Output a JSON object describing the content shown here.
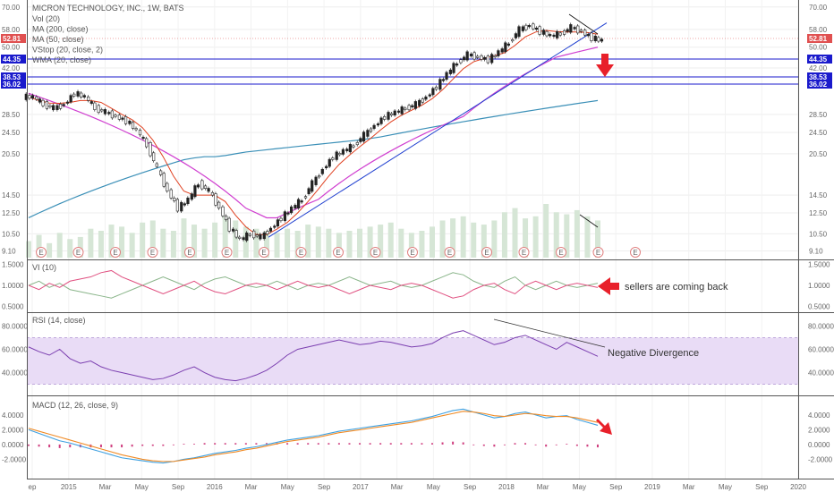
{
  "chart_data": {
    "type": "line",
    "title": "MICRON TECHNOLOGY, INC., 1W, BATS",
    "legend": [
      "Vol (20)",
      "MA (200, close)",
      "MA (50, close)",
      "VStop (20, close, 2)",
      "WMA (20, close)"
    ],
    "x_labels": [
      "ep",
      "2015",
      "Mar",
      "May",
      "Sep",
      "2016",
      "Mar",
      "May",
      "Sep",
      "2017",
      "Mar",
      "May",
      "Sep",
      "2018",
      "Mar",
      "May",
      "Sep",
      "2019",
      "Mar",
      "May",
      "Sep",
      "2020"
    ],
    "price_axis": {
      "ticks": [
        "70.00",
        "58.00",
        "50.00",
        "42.00",
        "28.50",
        "24.50",
        "20.50",
        "14.50",
        "12.50",
        "10.50",
        "9.10"
      ],
      "last_close": "52.81",
      "levels": [
        "44.35",
        "38.53",
        "36.02"
      ]
    },
    "price_series": {
      "close": [
        33,
        31,
        30,
        31,
        34,
        33,
        30,
        29,
        28,
        27,
        25,
        22,
        18,
        15,
        13,
        14,
        16,
        15,
        13,
        11,
        10,
        10.5,
        10.2,
        11,
        12,
        13,
        14,
        16,
        18,
        20,
        21,
        22,
        24,
        26,
        28,
        29,
        30,
        31,
        33,
        36,
        40,
        44,
        47,
        46,
        45,
        48,
        52,
        58,
        60,
        57,
        55,
        56,
        59,
        57,
        54,
        52.81
      ],
      "ma50": [
        34,
        33,
        32,
        31,
        30,
        29,
        28,
        27,
        26,
        25,
        24,
        23,
        22,
        21,
        20,
        19,
        18,
        17,
        16,
        15,
        14,
        13,
        12.5,
        12,
        12,
        12.5,
        13,
        13.5,
        14,
        15,
        16,
        17,
        18,
        19,
        20,
        21,
        22,
        23,
        24,
        25,
        26,
        27,
        28,
        30,
        32,
        34,
        36,
        38,
        40,
        42,
        44,
        46,
        47,
        48,
        49,
        50
      ],
      "ma200": [
        12,
        12.5,
        13,
        13.5,
        14,
        14.5,
        15,
        15.5,
        16,
        16.5,
        17,
        17.5,
        18,
        18.5,
        19,
        19.5,
        19.8,
        20,
        20,
        20.2,
        20.5,
        20.8,
        21,
        21.2,
        21.4,
        21.6,
        21.8,
        22,
        22.2,
        22.4,
        22.6,
        22.8,
        23,
        23.3,
        23.6,
        24,
        24.4,
        24.8,
        25.2,
        25.6,
        26,
        26.4,
        26.8,
        27.2,
        27.6,
        28,
        28.4,
        28.8,
        29.2,
        29.6,
        30,
        30.4,
        30.8,
        31.2,
        31.6,
        32
      ]
    },
    "volume": [
      40,
      55,
      35,
      60,
      45,
      50,
      70,
      65,
      80,
      75,
      60,
      85,
      90,
      70,
      65,
      95,
      80,
      70,
      85,
      100,
      90,
      75,
      70,
      65,
      60,
      70,
      65,
      80,
      75,
      70,
      60,
      65,
      70,
      75,
      80,
      85,
      70,
      60,
      65,
      75,
      90,
      95,
      100,
      85,
      80,
      90,
      110,
      120,
      95,
      100,
      130,
      110,
      105,
      115,
      100,
      90
    ],
    "earnings_markers": "E",
    "vi": {
      "label": "VI (10)",
      "ticks": [
        "1.5000",
        "1.0000",
        "0.5000"
      ],
      "vi_plus": [
        1.0,
        1.1,
        0.95,
        1.05,
        0.9,
        0.85,
        0.8,
        0.75,
        0.7,
        0.8,
        0.9,
        1.0,
        1.1,
        1.2,
        1.1,
        1.0,
        0.9,
        1.05,
        1.15,
        1.2,
        1.1,
        1.0,
        0.95,
        1.0,
        1.1,
        1.0,
        0.9,
        1.0,
        1.05,
        1.0,
        1.1,
        1.2,
        1.1,
        1.0,
        1.05,
        1.1,
        1.0,
        0.95,
        1.0,
        1.1,
        1.2,
        1.3,
        1.25,
        1.1,
        1.0,
        0.95,
        1.1,
        1.2,
        1.0,
        0.9,
        1.0,
        1.1,
        1.0,
        0.95,
        1.0,
        1.05
      ],
      "vi_minus": [
        1.0,
        0.9,
        1.05,
        0.95,
        1.1,
        1.15,
        1.2,
        1.3,
        1.35,
        1.2,
        1.1,
        1.0,
        0.9,
        0.8,
        0.9,
        1.0,
        1.1,
        0.95,
        0.85,
        0.8,
        0.9,
        1.0,
        1.05,
        1.0,
        0.9,
        1.0,
        1.1,
        1.0,
        0.95,
        1.0,
        0.9,
        0.8,
        0.9,
        1.0,
        0.95,
        0.9,
        1.0,
        1.05,
        1.0,
        0.9,
        0.8,
        0.7,
        0.75,
        0.9,
        1.0,
        1.05,
        0.9,
        0.8,
        1.0,
        1.1,
        1.0,
        0.9,
        1.0,
        1.05,
        1.0,
        0.95
      ],
      "annotation": "sellers are coming back"
    },
    "rsi": {
      "label": "RSI (14, close)",
      "ticks": [
        "80.0000",
        "60.0000",
        "40.0000"
      ],
      "values": [
        62,
        58,
        55,
        60,
        52,
        48,
        50,
        45,
        42,
        40,
        38,
        36,
        34,
        35,
        38,
        42,
        45,
        40,
        36,
        34,
        33,
        35,
        38,
        42,
        48,
        55,
        60,
        62,
        64,
        66,
        68,
        66,
        64,
        65,
        67,
        66,
        64,
        62,
        63,
        65,
        70,
        74,
        76,
        72,
        68,
        64,
        66,
        70,
        72,
        68,
        64,
        60,
        66,
        62,
        58,
        54
      ],
      "annotation": "Negative Divergence"
    },
    "macd": {
      "label": "MACD (12, 26, close, 9)",
      "ticks": [
        "4.0000",
        "2.0000",
        "0.0000",
        "-2.0000"
      ],
      "macd": [
        2.0,
        1.5,
        1.0,
        0.5,
        0.2,
        -0.2,
        -0.6,
        -1.0,
        -1.4,
        -1.8,
        -2.0,
        -2.2,
        -2.4,
        -2.5,
        -2.3,
        -2.0,
        -1.8,
        -1.5,
        -1.2,
        -1.0,
        -0.8,
        -0.5,
        -0.3,
        0.0,
        0.3,
        0.6,
        0.8,
        1.0,
        1.2,
        1.5,
        1.8,
        2.0,
        2.2,
        2.4,
        2.6,
        2.8,
        3.0,
        3.2,
        3.5,
        3.8,
        4.2,
        4.6,
        4.8,
        4.4,
        4.0,
        3.6,
        3.8,
        4.2,
        4.4,
        4.0,
        3.6,
        3.8,
        3.9,
        3.4,
        3.0,
        2.6
      ],
      "signal": [
        2.2,
        1.8,
        1.4,
        1.0,
        0.6,
        0.2,
        -0.2,
        -0.6,
        -1.0,
        -1.4,
        -1.7,
        -2.0,
        -2.2,
        -2.3,
        -2.3,
        -2.1,
        -1.9,
        -1.7,
        -1.4,
        -1.2,
        -1.0,
        -0.7,
        -0.5,
        -0.2,
        0.1,
        0.4,
        0.6,
        0.8,
        1.0,
        1.3,
        1.6,
        1.8,
        2.0,
        2.2,
        2.4,
        2.6,
        2.8,
        3.0,
        3.3,
        3.6,
        3.9,
        4.2,
        4.5,
        4.4,
        4.2,
        3.9,
        3.8,
        4.0,
        4.2,
        4.1,
        3.9,
        3.8,
        3.8,
        3.6,
        3.3,
        3.0
      ]
    }
  },
  "colors": {
    "bull": "#222222",
    "bear": "#ffffff",
    "ma200": "#3a8fb7",
    "ma50": "#d03fd0",
    "wma": "#e04020",
    "trend": "#2040d0",
    "rsi": "#7b3fb0",
    "macd": "#3ea0e0",
    "signal": "#f08a24",
    "hist": "#d04080",
    "vi_plus": "#8ab58a",
    "vi_minus": "#e05080",
    "level_tag": "#1a1acc",
    "last_tag": "#e05050",
    "arrow": "#e8202a"
  }
}
